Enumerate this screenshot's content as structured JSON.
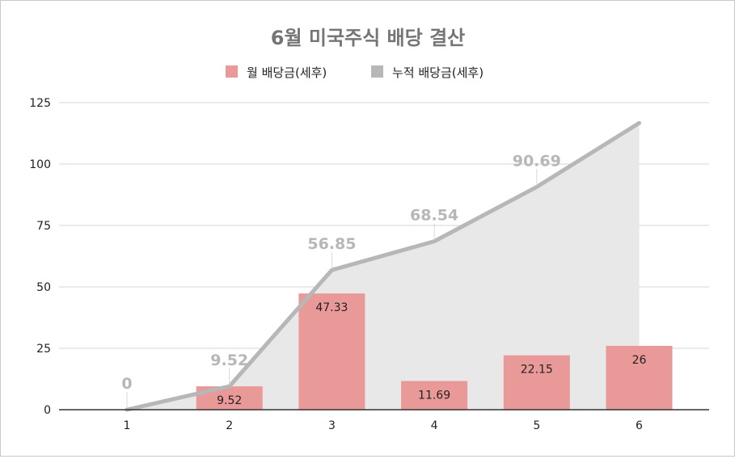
{
  "chart_data": {
    "type": "bar",
    "title": "6월 미국주식 배당 결산",
    "categories": [
      "1",
      "2",
      "3",
      "4",
      "5",
      "6"
    ],
    "series": [
      {
        "name": "월 배당금(세후)",
        "type": "bar",
        "color": "#ea9999",
        "values": [
          0,
          9.52,
          47.33,
          11.69,
          22.15,
          26
        ],
        "labels": [
          "",
          "9.52",
          "47.33",
          "11.69",
          "22.15",
          "26"
        ]
      },
      {
        "name": "누적 배당금(세후)",
        "type": "line-area",
        "color": "#b7b7b7",
        "area_color": "#e8e8e8",
        "values": [
          0,
          9.52,
          56.85,
          68.54,
          90.69,
          116.69
        ],
        "labels": [
          "0",
          "9.52",
          "56.85",
          "68.54",
          "90.69",
          ""
        ]
      }
    ],
    "ylim": [
      0,
      125
    ],
    "yticks": [
      "0",
      "25",
      "50",
      "75",
      "100",
      "125"
    ],
    "grid": true,
    "legend_position": "top"
  }
}
